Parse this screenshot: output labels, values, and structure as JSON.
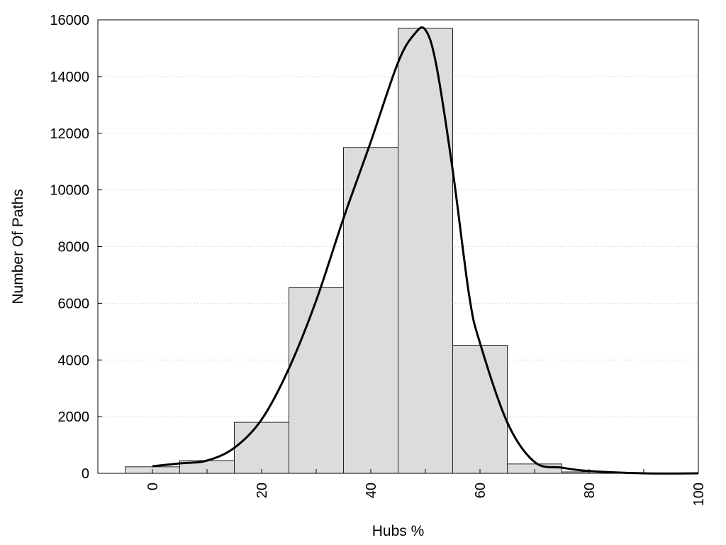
{
  "chart_data": {
    "type": "bar",
    "title": "",
    "xlabel": "Hubs %",
    "ylabel": "Number Of Paths",
    "xlim": [
      -10,
      100
    ],
    "ylim": [
      0,
      16000
    ],
    "x_ticks": [
      0,
      20,
      40,
      60,
      80,
      100
    ],
    "y_ticks": [
      0,
      2000,
      4000,
      6000,
      8000,
      10000,
      12000,
      14000,
      16000
    ],
    "grid": "horizontal dotted",
    "bin_width": 10,
    "bins": [
      {
        "center": 0,
        "value": 230
      },
      {
        "center": 10,
        "value": 450
      },
      {
        "center": 20,
        "value": 1800
      },
      {
        "center": 30,
        "value": 6550
      },
      {
        "center": 40,
        "value": 11500
      },
      {
        "center": 50,
        "value": 15700
      },
      {
        "center": 60,
        "value": 4520
      },
      {
        "center": 70,
        "value": 330
      },
      {
        "center": 80,
        "value": 50
      },
      {
        "center": 90,
        "value": 10
      },
      {
        "center": 100,
        "value": 5
      }
    ],
    "curve": {
      "x": [
        0,
        5,
        10,
        15,
        20,
        25,
        30,
        35,
        40,
        45,
        48,
        50,
        52,
        55,
        58,
        60,
        65,
        70,
        75,
        80,
        90,
        100
      ],
      "y": [
        250,
        350,
        450,
        900,
        1900,
        3700,
        6100,
        9000,
        11700,
        14500,
        15500,
        15650,
        14400,
        10700,
        6300,
        4600,
        1800,
        400,
        200,
        80,
        0,
        0
      ]
    },
    "colors": {
      "bar_fill": "#dcdcdc",
      "bar_stroke": "#222222",
      "curve": "#000000",
      "grid": "#c8c8c8"
    }
  }
}
